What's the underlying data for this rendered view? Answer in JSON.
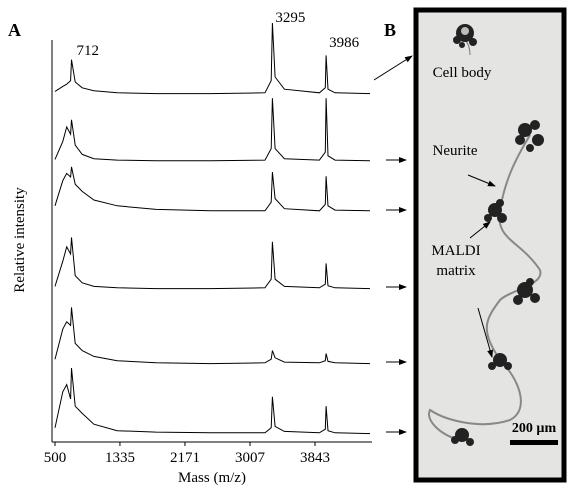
{
  "panel_a_label": "A",
  "panel_b_label": "B",
  "chart_data": {
    "type": "line",
    "xlabel": "Mass (m/z)",
    "ylabel": "Relative intensity",
    "x": [
      500,
      600,
      650,
      700,
      712,
      760,
      850,
      1000,
      1300,
      1800,
      2500,
      3200,
      3280,
      3295,
      3330,
      3450,
      3900,
      3975,
      3986,
      4010,
      4100,
      4550
    ],
    "xlim": [
      500,
      4550
    ],
    "xticks": [
      500,
      1335,
      2171,
      3007,
      3843
    ],
    "peak_labels": [
      712,
      3295,
      3986
    ],
    "series": [
      {
        "color": "#000000",
        "values": [
          5,
          12,
          15,
          20,
          49,
          18,
          10,
          6,
          3,
          2,
          2,
          3,
          20,
          100,
          25,
          8,
          3,
          10,
          55,
          8,
          3,
          2
        ]
      },
      {
        "color": "#000000",
        "values": [
          5,
          30,
          50,
          40,
          60,
          25,
          12,
          6,
          4,
          3,
          3,
          4,
          20,
          90,
          20,
          6,
          4,
          15,
          90,
          10,
          4,
          3
        ]
      },
      {
        "color": "#000000",
        "values": [
          10,
          45,
          55,
          50,
          64,
          40,
          30,
          18,
          10,
          5,
          3,
          3,
          15,
          57,
          20,
          6,
          3,
          12,
          51,
          10,
          4,
          3
        ]
      },
      {
        "color": "#000000",
        "values": [
          5,
          40,
          60,
          50,
          73,
          20,
          10,
          5,
          3,
          2,
          2,
          3,
          15,
          67,
          15,
          5,
          3,
          8,
          37,
          6,
          3,
          2
        ]
      },
      {
        "color": "#000000",
        "values": [
          8,
          50,
          60,
          55,
          80,
          30,
          20,
          12,
          6,
          3,
          2,
          3,
          8,
          20,
          10,
          4,
          3,
          6,
          16,
          5,
          3,
          2
        ]
      },
      {
        "color": "#000000",
        "values": [
          10,
          60,
          70,
          50,
          93,
          40,
          30,
          15,
          6,
          4,
          3,
          3,
          10,
          53,
          12,
          5,
          3,
          8,
          40,
          6,
          3,
          2
        ]
      }
    ]
  },
  "image": {
    "labels": [
      "Cell body",
      "Neurite",
      "MALDI",
      "matrix"
    ],
    "scale_bar": "200 µm"
  }
}
